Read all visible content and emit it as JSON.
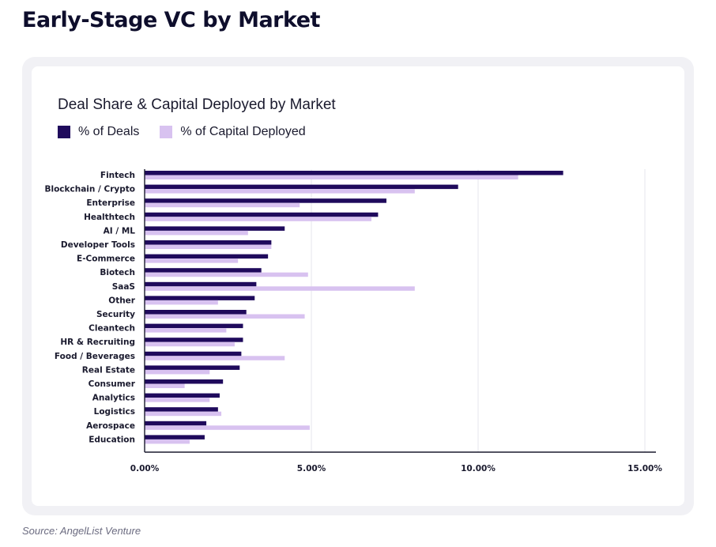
{
  "page": {
    "title": "Early-Stage VC by Market",
    "source": "Source: AngelList Venture"
  },
  "colors": {
    "deals": "#1f0a5c",
    "capital": "#d8c2f0",
    "grid": "#e6e6ec",
    "axis": "#1a1a2e"
  },
  "chart_data": {
    "type": "bar",
    "orientation": "horizontal",
    "title": "Deal Share & Capital Deployed by Market",
    "xlabel": "",
    "ylabel": "",
    "xlim": [
      0,
      15
    ],
    "ticks": [
      0,
      5,
      10,
      15
    ],
    "tick_labels": [
      "0.00%",
      "5.00%",
      "10.00%",
      "15.00%"
    ],
    "grid": "vertical",
    "legend_position": "top-left",
    "categories": [
      "Fintech",
      "Blockchain / Crypto",
      "Enterprise",
      "Healthtech",
      "AI / ML",
      "Developer Tools",
      "E-Commerce",
      "Biotech",
      "SaaS",
      "Other",
      "Security",
      "Cleantech",
      "HR & Recruiting",
      "Food / Beverages",
      "Real Estate",
      "Consumer",
      "Analytics",
      "Logistics",
      "Aerospace",
      "Education"
    ],
    "series": [
      {
        "name": "% of Deals",
        "color": "#1f0a5c",
        "values": [
          12.55,
          9.4,
          7.25,
          7.0,
          4.2,
          3.8,
          3.7,
          3.5,
          3.35,
          3.3,
          3.05,
          2.95,
          2.95,
          2.9,
          2.85,
          2.35,
          2.25,
          2.2,
          1.85,
          1.8
        ]
      },
      {
        "name": "% of Capital Deployed",
        "color": "#d8c2f0",
        "values": [
          11.2,
          8.1,
          4.65,
          6.8,
          3.1,
          3.8,
          2.8,
          4.9,
          8.1,
          2.2,
          4.8,
          2.45,
          2.7,
          4.2,
          1.95,
          1.2,
          1.95,
          2.3,
          4.95,
          1.35
        ]
      }
    ]
  }
}
